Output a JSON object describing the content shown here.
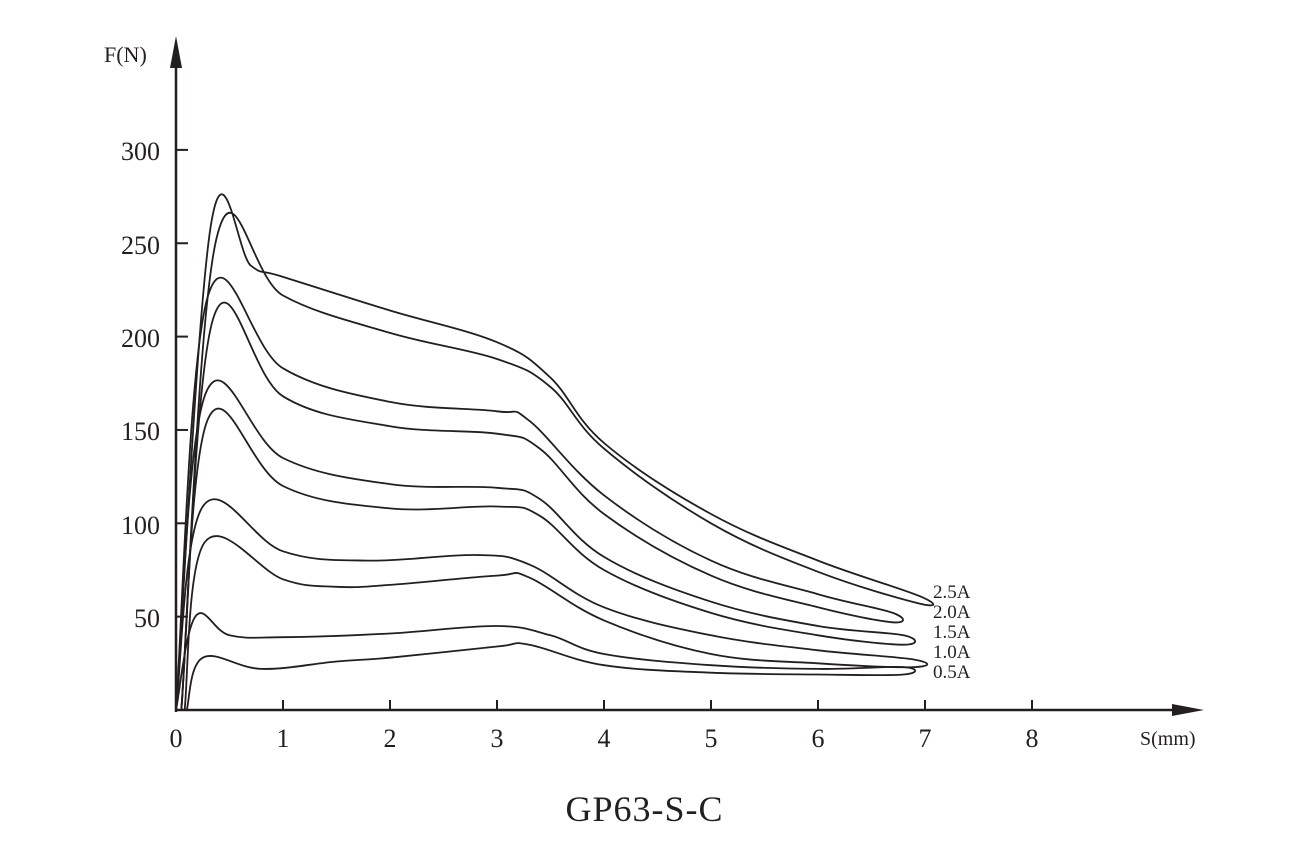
{
  "chart_data": {
    "type": "line",
    "title": "GP63-S-C",
    "xlabel": "S(mm)",
    "ylabel": "F(N)",
    "xlim": [
      0,
      8.5
    ],
    "ylim": [
      0,
      300
    ],
    "xticks": [
      0,
      1,
      2,
      3,
      4,
      5,
      6,
      7,
      8
    ],
    "yticks": [
      50,
      100,
      150,
      200,
      250,
      300
    ],
    "grid": false,
    "legend_position": "inline-right",
    "series": [
      {
        "name": "2.5A",
        "upper": [
          [
            0,
            0
          ],
          [
            0.33,
            261
          ],
          [
            0.7,
            238
          ],
          [
            1.0,
            232
          ],
          [
            2,
            214
          ],
          [
            3,
            197
          ],
          [
            3.5,
            178
          ],
          [
            4,
            143
          ],
          [
            5,
            105
          ],
          [
            6,
            80
          ],
          [
            6.95,
            61
          ]
        ],
        "lower": [
          [
            6.95,
            57
          ],
          [
            6,
            74
          ],
          [
            5,
            100
          ],
          [
            4,
            140
          ],
          [
            3.5,
            173
          ],
          [
            3,
            188
          ],
          [
            2,
            202
          ],
          [
            1,
            222
          ],
          [
            0.38,
            253
          ],
          [
            0.05,
            0
          ]
        ]
      },
      {
        "name": "2.0A",
        "upper": [
          [
            0,
            0
          ],
          [
            0.3,
            222
          ],
          [
            1,
            183
          ],
          [
            2,
            165
          ],
          [
            3,
            160
          ],
          [
            3.3,
            155
          ],
          [
            4,
            115
          ],
          [
            5,
            80
          ],
          [
            6,
            62
          ],
          [
            6.7,
            52
          ]
        ],
        "lower": [
          [
            6.7,
            47
          ],
          [
            6,
            55
          ],
          [
            5,
            72
          ],
          [
            4,
            105
          ],
          [
            3.4,
            140
          ],
          [
            3,
            148
          ],
          [
            2,
            152
          ],
          [
            1,
            168
          ],
          [
            0.35,
            210
          ],
          [
            0.05,
            0
          ]
        ]
      },
      {
        "name": "1.5A",
        "upper": [
          [
            0,
            0
          ],
          [
            0.28,
            170
          ],
          [
            1,
            135
          ],
          [
            2,
            121
          ],
          [
            3,
            119
          ],
          [
            3.4,
            113
          ],
          [
            4,
            82
          ],
          [
            5,
            58
          ],
          [
            6,
            45
          ],
          [
            6.8,
            40
          ]
        ],
        "lower": [
          [
            6.8,
            35
          ],
          [
            6,
            40
          ],
          [
            5,
            52
          ],
          [
            4,
            75
          ],
          [
            3.4,
            104
          ],
          [
            3,
            109
          ],
          [
            2,
            108
          ],
          [
            1,
            120
          ],
          [
            0.3,
            156
          ],
          [
            0.05,
            0
          ]
        ]
      },
      {
        "name": "1.0A",
        "upper": [
          [
            0,
            0
          ],
          [
            0.25,
            109
          ],
          [
            1,
            85
          ],
          [
            1.8,
            80
          ],
          [
            2.8,
            83
          ],
          [
            3.3,
            78
          ],
          [
            4,
            55
          ],
          [
            5,
            40
          ],
          [
            6,
            32
          ],
          [
            6.9,
            27
          ]
        ],
        "lower": [
          [
            6.9,
            23
          ],
          [
            6,
            25
          ],
          [
            5,
            30
          ],
          [
            4,
            48
          ],
          [
            3.3,
            71
          ],
          [
            3,
            72
          ],
          [
            2,
            67
          ],
          [
            1.5,
            66
          ],
          [
            1,
            70
          ],
          [
            0.27,
            90
          ],
          [
            0.08,
            0
          ]
        ]
      },
      {
        "name": "0.5A",
        "upper": [
          [
            0,
            0
          ],
          [
            0.18,
            50
          ],
          [
            0.5,
            40
          ],
          [
            1,
            39
          ],
          [
            2,
            41
          ],
          [
            3,
            45
          ],
          [
            3.5,
            40
          ],
          [
            4,
            30
          ],
          [
            5,
            24
          ],
          [
            6,
            22
          ],
          [
            6.8,
            23
          ]
        ],
        "lower": [
          [
            6.8,
            19
          ],
          [
            6,
            19
          ],
          [
            5,
            20
          ],
          [
            4,
            24
          ],
          [
            3.3,
            35
          ],
          [
            3,
            34
          ],
          [
            2,
            28
          ],
          [
            1.5,
            26
          ],
          [
            0.8,
            22
          ],
          [
            0.25,
            28
          ],
          [
            0.1,
            0
          ]
        ]
      }
    ]
  },
  "labels": {
    "ylabel": "F(N)",
    "xlabel": "S(mm)",
    "title": "GP63-S-C",
    "yticks": [
      "300",
      "250",
      "200",
      "150",
      "100",
      "50"
    ],
    "xticks": [
      "0",
      "1",
      "2",
      "3",
      "4",
      "5",
      "6",
      "7",
      "8"
    ],
    "curves": [
      "2.5A",
      "2.0A",
      "1.5A",
      "1.0A",
      "0.5A"
    ]
  },
  "colors": {
    "line": "#231f20",
    "background": "#ffffff"
  }
}
